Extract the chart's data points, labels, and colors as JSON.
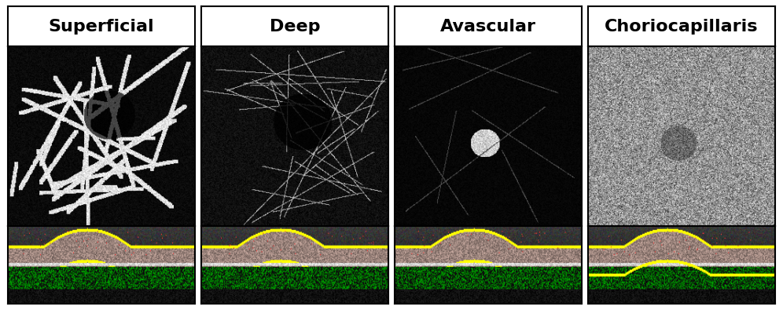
{
  "titles": [
    "Superficial",
    "Deep",
    "Avascular",
    "Choriocapillaris"
  ],
  "title_fontsize": 16,
  "title_fontweight": "bold",
  "bg_color": "#ffffff",
  "panel_bg": "#000000",
  "border_color": "#000000",
  "outer_bg": "#e8e8e8",
  "n_panels": 4,
  "figsize": [
    9.96,
    3.95
  ],
  "dpi": 100
}
